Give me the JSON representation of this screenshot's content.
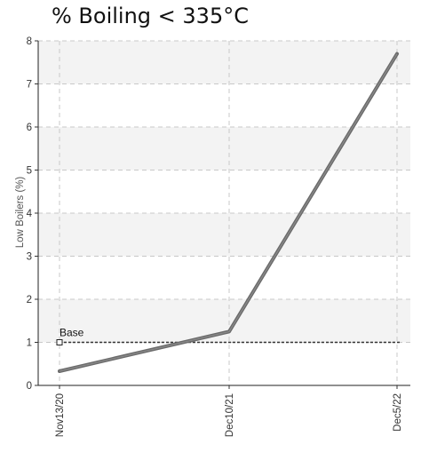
{
  "chart_data": {
    "type": "line",
    "title": "% Boiling < 335°C",
    "xlabel": "",
    "ylabel": "Low Boilers (%)",
    "categories": [
      "Nov13/20",
      "Dec10/21",
      "Dec5/22"
    ],
    "series": [
      {
        "values": [
          0.33,
          1.25,
          7.7
        ],
        "color": "#6b6b6b"
      }
    ],
    "reference_lines": [
      {
        "name": "Base",
        "value": 1.0,
        "style": "dotted",
        "color": "#333333"
      }
    ],
    "ylim": [
      0,
      8
    ],
    "yticks": [
      0,
      1,
      2,
      3,
      4,
      5,
      6,
      7,
      8
    ],
    "grid": true,
    "banded_background": true,
    "legend": "none"
  }
}
